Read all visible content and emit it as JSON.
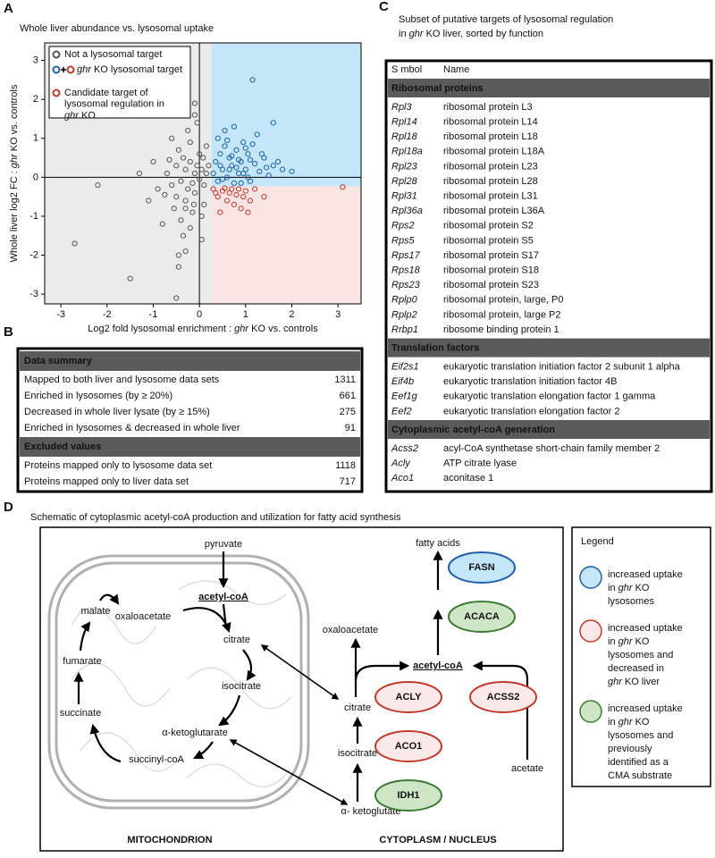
{
  "chart_data": {
    "type": "scatter",
    "panel_label": "A",
    "title": "Whole liver abundance vs. lysosomal uptake",
    "x_label": "Log2 fold lysosomal enrichment : ghr KO vs. controls",
    "y_label": "Whole liver log2 FC : ghr KO vs. controls",
    "xlim": [
      -3.35,
      3.5
    ],
    "ylim": [
      -3.25,
      3.45
    ],
    "xticks": [
      -3,
      -2,
      -1,
      0,
      1,
      2,
      3
    ],
    "yticks": [
      -3,
      -2,
      -1,
      0,
      1,
      2,
      3
    ],
    "grid": false,
    "legend_position": "upper left",
    "thresholds": {
      "x": 0.26,
      "y": -0.23
    },
    "regions": {
      "background": "#ebebeb",
      "upper": "#c3e6f8",
      "lower": "#fae4e4"
    },
    "series": [
      {
        "name": "Not a lysosomal target",
        "color": "#555555",
        "x": [
          -2.7,
          -1.5,
          -0.5,
          -0.45,
          -0.3,
          -1.1,
          -0.9,
          -0.7,
          -0.6,
          -0.5,
          -0.4,
          -0.35,
          -0.3,
          -0.25,
          -0.2,
          -0.15,
          -0.1,
          -0.05,
          0,
          0.05,
          0.1,
          0.15,
          0.2,
          -0.8,
          -0.55,
          -0.45,
          -0.3,
          -0.2,
          -0.1,
          0,
          0.1,
          -0.6,
          -0.4,
          -0.25,
          -0.15,
          -0.05,
          0.05,
          0.15,
          -0.35,
          -0.2,
          -0.1,
          0.05,
          -1.3,
          -1.0,
          -0.75,
          -0.65,
          -0.5,
          -0.3,
          -0.12,
          0.08,
          -0.5,
          -0.1,
          1.15,
          -0.45,
          -2.2
        ],
        "values": [
          -1.7,
          -2.6,
          -3.1,
          -2.3,
          -1.9,
          -0.6,
          -0.3,
          0.1,
          -0.2,
          0.3,
          -0.1,
          0.5,
          0.2,
          -0.3,
          0.4,
          -0.15,
          0.1,
          0.3,
          -0.05,
          0.2,
          -0.2,
          0.1,
          0.3,
          -1.2,
          -0.8,
          0.7,
          -0.6,
          0.9,
          -0.4,
          0.6,
          -0.7,
          1.0,
          -1.1,
          1.2,
          -0.9,
          1.4,
          -1.0,
          0.8,
          -1.5,
          -1.3,
          1.6,
          -1.6,
          0.1,
          0.4,
          -0.45,
          0.45,
          -0.5,
          -0.8,
          -0.7,
          0.5,
          2.2,
          1.9,
          2.5,
          -2.0,
          -0.2
        ]
      },
      {
        "name": "ghr KO lysosomal target",
        "color": "#1f5fa8",
        "x": [
          0.3,
          0.35,
          0.4,
          0.45,
          0.5,
          0.55,
          0.6,
          0.65,
          0.7,
          0.75,
          0.8,
          0.85,
          0.9,
          0.95,
          1.0,
          1.05,
          1.1,
          1.2,
          1.3,
          1.4,
          1.5,
          1.6,
          1.8,
          0.4,
          0.5,
          0.6,
          0.7,
          0.8,
          0.9,
          1.0,
          1.1,
          1.25,
          0.45,
          0.65,
          0.85,
          1.05,
          1.35,
          0.55,
          0.75,
          0.95,
          1.15,
          1.45,
          1.7,
          2.0,
          1.6
        ],
        "values": [
          0.1,
          0.4,
          -0.1,
          0.6,
          0.2,
          0.8,
          0,
          0.5,
          0.3,
          -0.15,
          0.7,
          0.1,
          0.4,
          0.9,
          0.2,
          0.6,
          -0.1,
          0.35,
          0.15,
          0.5,
          0.05,
          0.3,
          0.2,
          1.0,
          -0.05,
          0.95,
          0.55,
          0.25,
          -0.15,
          0.75,
          0.45,
          1.1,
          0.3,
          0.2,
          0.45,
          0,
          0.6,
          1.2,
          1.3,
          0.1,
          0.85,
          0.25,
          0.4,
          0.15,
          1.4
        ]
      },
      {
        "name": "Candidate target of lysosomal regulation in ghr KO",
        "color": "#c0392b",
        "x": [
          0.3,
          0.4,
          0.5,
          0.6,
          0.7,
          0.8,
          0.9,
          1.0,
          1.2,
          1.4,
          0.45,
          0.65,
          0.85,
          1.1,
          0.55,
          0.75,
          0.95,
          0.35,
          3.1,
          1.05
        ],
        "values": [
          -0.3,
          -0.5,
          -0.35,
          -0.6,
          -0.3,
          -0.45,
          -0.8,
          -0.35,
          -0.3,
          -0.5,
          -0.9,
          -0.4,
          -0.3,
          -0.6,
          -0.28,
          -0.7,
          -0.5,
          -0.4,
          -0.25,
          -0.9
        ]
      }
    ]
  },
  "summary_table": {
    "panel_label": "B",
    "sections": [
      {
        "title": "Data summary",
        "rows": [
          [
            "Mapped to both liver and lysosome data sets",
            1311
          ],
          [
            "Enriched in lysosomes (by ≥ 20%)",
            661
          ],
          [
            "Decreased in whole liver lysate (by ≥ 15%)",
            275
          ],
          [
            "Enriched in lysosomes & decreased in whole liver",
            91
          ]
        ]
      },
      {
        "title": "Excluded values",
        "rows": [
          [
            "Proteins mapped only to lysosome data set",
            1118
          ],
          [
            "Proteins mapped only to liver data set",
            717
          ]
        ]
      }
    ]
  },
  "targets_table": {
    "panel_label": "C",
    "title_lines": [
      "Subset of putative targets of lysosomal regulation",
      "in ghr KO liver, sorted by function"
    ],
    "header": [
      "S mbol",
      "Name"
    ],
    "sections": [
      {
        "title": "Ribosomal proteins",
        "rows": [
          [
            "Rpl3",
            "ribosomal protein L3"
          ],
          [
            "Rpl14",
            "ribosomal protein L14"
          ],
          [
            "Rpl18",
            "ribosomal protein L18"
          ],
          [
            "Rpl18a",
            "ribosomal protein L18A"
          ],
          [
            "Rpl23",
            "ribosomal protein L23"
          ],
          [
            "Rpl28",
            "ribosomal protein L28"
          ],
          [
            "Rpl31",
            "ribosomal protein L31"
          ],
          [
            "Rpl36a",
            "ribosomal protein L36A"
          ],
          [
            "Rps2",
            "ribosomal protein S2"
          ],
          [
            "Rps5",
            "ribosomal protein S5"
          ],
          [
            "Rps17",
            "ribosomal protein S17"
          ],
          [
            "Rps18",
            "ribosomal protein S18"
          ],
          [
            "Rps23",
            "ribosomal protein S23"
          ],
          [
            "Rplp0",
            "ribosomal protein, large, P0"
          ],
          [
            "Rplp2",
            "ribosomal protein, large P2"
          ],
          [
            "Rrbp1",
            "ribosome binding protein 1"
          ]
        ]
      },
      {
        "title": "Translation factors",
        "rows": [
          [
            "Eif2s1",
            "eukaryotic translation initiation factor 2 subunit 1 alpha"
          ],
          [
            "Eif4b",
            "eukaryotic translation initiation factor 4B"
          ],
          [
            "Eef1g",
            "eukaryotic translation elongation factor 1 gamma"
          ],
          [
            "Eef2",
            "eukaryotic translation elongation factor 2"
          ]
        ]
      },
      {
        "title": "Cytoplasmic acetyl-coA generation",
        "rows": [
          [
            "Acss2",
            "acyl-CoA synthetase short-chain family member 2"
          ],
          [
            "Acly",
            "ATP citrate lyase"
          ],
          [
            "Aco1",
            "aconitase 1"
          ]
        ]
      }
    ]
  },
  "schematic": {
    "panel_label": "D",
    "title": "Schematic of cytoplasmic acetyl-coA production and utilization for fatty acid synthesis",
    "compartments": [
      "MITOCHONDRION",
      "CYTOPLASM / NUCLEUS"
    ],
    "metabolites": [
      "pyruvate",
      "acetyl-coA",
      "oxaloacetate",
      "citrate",
      "isocitrate",
      "α-ketoglutarate",
      "succinyl-coA",
      "succinate",
      "fumarate",
      "malate",
      "fatty acids",
      "oxaloacetate",
      "acetyl-coA",
      "citrate",
      "isocitrate",
      "α- ketoglutate",
      "acetate"
    ],
    "enzymes": [
      {
        "label": "FASN",
        "fill": "#c3e6f8",
        "stroke": "#1f5fa8"
      },
      {
        "label": "ACACA",
        "fill": "#cfe6c6",
        "stroke": "#3c7a34"
      },
      {
        "label": "ACLY",
        "fill": "#fbe9e9",
        "stroke": "#c0392b"
      },
      {
        "label": "ACSS2",
        "fill": "#fbe9e9",
        "stroke": "#c0392b"
      },
      {
        "label": "ACO1",
        "fill": "#fbe9e9",
        "stroke": "#c0392b"
      },
      {
        "label": "IDH1",
        "fill": "#cfe6c6",
        "stroke": "#3c7a34"
      }
    ],
    "legend": {
      "title": "Legend",
      "items": [
        {
          "fill": "#c3e6f8",
          "stroke": "#1f5fa8",
          "lines": [
            "increased uptake",
            "in ghr KO",
            "lysosomes"
          ]
        },
        {
          "fill": "#fbe9e9",
          "stroke": "#c0392b",
          "lines": [
            "increased uptake",
            "in ghr KO",
            "lysosomes and",
            "decreased in",
            "ghr KO liver"
          ]
        },
        {
          "fill": "#cfe6c6",
          "stroke": "#3c7a34",
          "lines": [
            "increased uptake",
            "in ghr KO",
            "lysosomes and",
            "previously",
            "identified as a",
            "CMA substrate"
          ]
        }
      ]
    }
  }
}
